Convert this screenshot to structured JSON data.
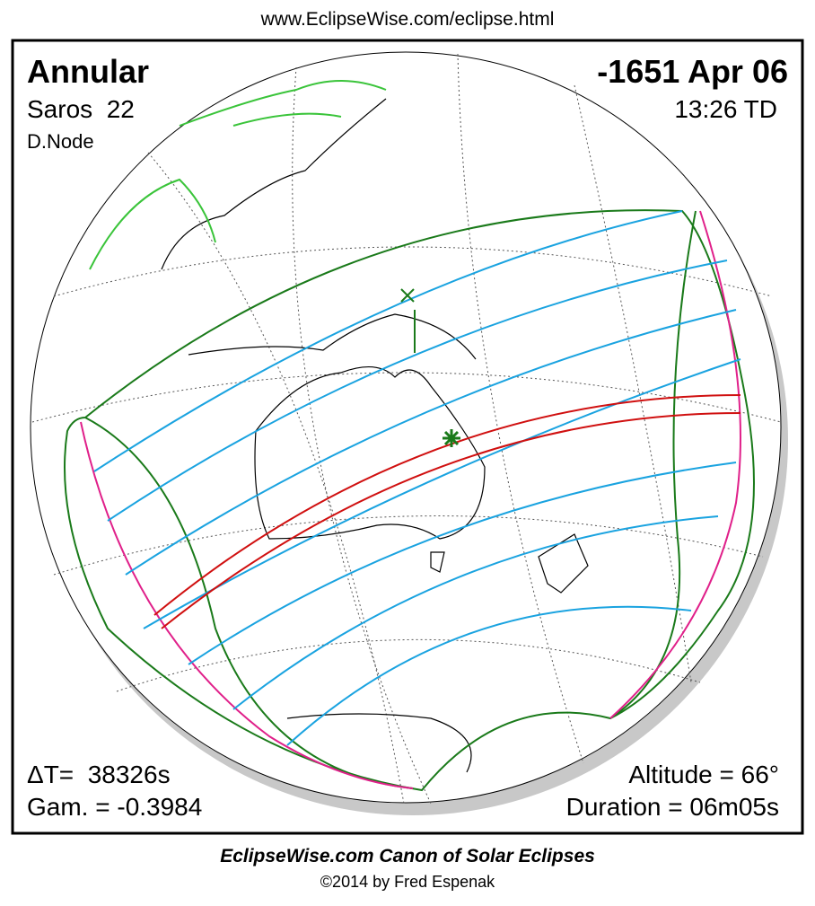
{
  "header": {
    "url": "www.EclipseWise.com/eclipse.html"
  },
  "info": {
    "type": "Annular",
    "saros": "Saros  22",
    "node": "D.Node",
    "date": "-1651 Apr 06",
    "time": "13:26 TD",
    "delta_t": "ΔT=  38326s",
    "gamma": "Gam. = -0.3984",
    "altitude": "Altitude = 66°",
    "duration": "Duration = 06m05s"
  },
  "footer": {
    "title": "EclipseWise.com Canon of Solar Eclipses",
    "credit": "©2014 by Fred Espenak"
  }
}
